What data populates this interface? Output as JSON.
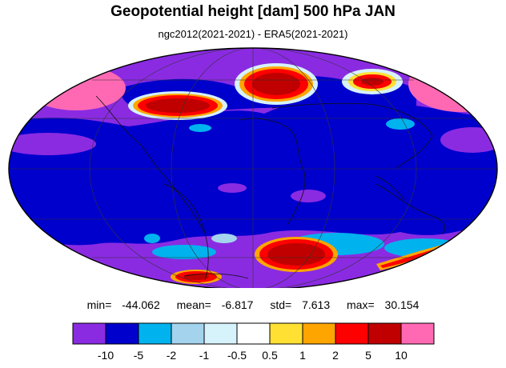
{
  "title": "Geopotential height [dam] 500 hPa JAN",
  "subtitle": "ngc2012(2021-2021) - ERA5(2021-2021)",
  "stats": {
    "min_label": "min=",
    "min": "-44.062",
    "mean_label": "mean=",
    "mean": "-6.817",
    "std_label": "std=",
    "std": "7.613",
    "max_label": "max=",
    "max": "30.154"
  },
  "colorbar": {
    "colors": [
      "#8a2be2",
      "#0000cd",
      "#00b2ee",
      "#a4d3ee",
      "#d6f2fb",
      "#ffffff",
      "#ffe033",
      "#ffa500",
      "#ff0000",
      "#c00000",
      "#ff69b4"
    ],
    "labels": [
      "-10",
      "-5",
      "-2",
      "-1",
      "-0.5",
      "0.5",
      "1",
      "2",
      "5",
      "10"
    ]
  },
  "map": {
    "projection": "Mollweide",
    "background_color": "#8a2be2",
    "dominant_band_color": "#0000cd"
  }
}
